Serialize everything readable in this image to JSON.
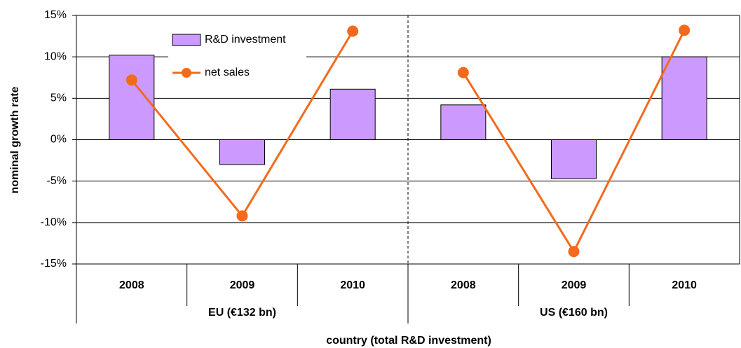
{
  "chart_data": {
    "type": "bar+line",
    "categories": [
      "2008",
      "2009",
      "2010",
      "2008",
      "2009",
      "2010"
    ],
    "groups": [
      "EU (€132 bn)",
      "US (€160 bn)"
    ],
    "series": [
      {
        "name": "R&D investment",
        "type": "bar",
        "color": "#cc99ff",
        "values": [
          10.2,
          -3.0,
          6.1,
          4.2,
          -4.7,
          10.0
        ]
      },
      {
        "name": "net sales",
        "type": "line",
        "color": "#f26b1d",
        "values": [
          7.2,
          -9.2,
          13.1,
          8.1,
          -13.5,
          13.2
        ]
      }
    ],
    "x_label": "country (total R&D investment)",
    "y_label": "nominal growth rate",
    "ylim": [
      -15,
      15
    ],
    "yticks": [
      {
        "value": -15,
        "label": "-15%"
      },
      {
        "value": -10,
        "label": "-10%"
      },
      {
        "value": -5,
        "label": "-5%"
      },
      {
        "value": 0,
        "label": "0%"
      },
      {
        "value": 5,
        "label": "5%"
      },
      {
        "value": 10,
        "label": "10%"
      },
      {
        "value": 15,
        "label": "15%"
      }
    ],
    "grid": true
  }
}
